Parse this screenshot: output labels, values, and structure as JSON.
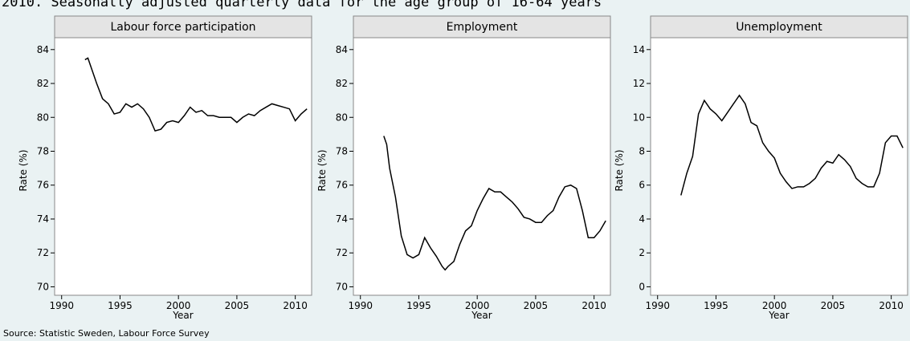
{
  "header": "2010. Seasonally adjusted quarterly data for the age group of 16-64 years",
  "source": "Source: Statistic Sweden, Labour Force Survey",
  "chart_data": [
    {
      "type": "line",
      "title": "Labour force participation",
      "xlabel": "Year",
      "ylabel": "Rate (%)",
      "xlim": [
        1989.4,
        2011.4
      ],
      "xticks": [
        1990,
        1995,
        2000,
        2005,
        2010
      ],
      "ylim": [
        69.5,
        84.7
      ],
      "yticks": [
        70,
        72,
        74,
        76,
        78,
        80,
        82,
        84
      ],
      "x": [
        1992,
        1992.25,
        1993,
        1993.5,
        1994,
        1994.5,
        1995,
        1995.5,
        1996,
        1996.5,
        1997,
        1997.5,
        1998,
        1998.5,
        1999,
        1999.5,
        2000,
        2000.5,
        2001,
        2001.5,
        2002,
        2002.5,
        2003,
        2003.5,
        2004,
        2004.5,
        2005,
        2005.5,
        2006,
        2006.5,
        2007,
        2007.5,
        2008,
        2008.5,
        2009,
        2009.5,
        2010,
        2010.5,
        2011
      ],
      "series": [
        {
          "color": "#000000",
          "values": [
            83.4,
            83.5,
            82.0,
            81.1,
            80.8,
            80.2,
            80.3,
            80.8,
            80.6,
            80.8,
            80.5,
            80.0,
            79.2,
            79.3,
            79.7,
            79.8,
            79.7,
            80.1,
            80.6,
            80.3,
            80.4,
            80.1,
            80.1,
            80.0,
            80.0,
            80.0,
            79.7,
            80.0,
            80.2,
            80.1,
            80.4,
            80.6,
            80.8,
            80.7,
            80.6,
            80.5,
            79.8,
            80.2,
            80.5
          ]
        }
      ]
    },
    {
      "type": "line",
      "title": "Employment",
      "xlabel": "Year",
      "ylabel": "Rate (%)",
      "xlim": [
        1989.4,
        2011.4
      ],
      "xticks": [
        1990,
        1995,
        2000,
        2005,
        2010
      ],
      "ylim": [
        69.5,
        84.7
      ],
      "yticks": [
        70,
        72,
        74,
        76,
        78,
        80,
        82,
        84
      ],
      "x": [
        1992,
        1992.25,
        1992.5,
        1993,
        1993.5,
        1994,
        1994.5,
        1995,
        1995.5,
        1996,
        1996.5,
        1997,
        1997.25,
        1997.5,
        1998,
        1998.5,
        1999,
        1999.5,
        2000,
        2000.5,
        2001,
        2001.5,
        2002,
        2002.5,
        2003,
        2003.5,
        2004,
        2004.5,
        2005,
        2005.5,
        2006,
        2006.5,
        2007,
        2007.5,
        2008,
        2008.5,
        2009,
        2009.5,
        2010,
        2010.5,
        2011
      ],
      "series": [
        {
          "color": "#000000",
          "values": [
            78.9,
            78.4,
            77.0,
            75.3,
            73.0,
            71.9,
            71.7,
            71.9,
            72.9,
            72.3,
            71.8,
            71.2,
            71.0,
            71.2,
            71.5,
            72.5,
            73.3,
            73.6,
            74.5,
            75.2,
            75.8,
            75.6,
            75.6,
            75.3,
            75.0,
            74.6,
            74.1,
            74.0,
            73.8,
            73.8,
            74.2,
            74.5,
            75.3,
            75.9,
            76.0,
            75.8,
            74.5,
            72.9,
            72.9,
            73.3,
            73.9
          ]
        }
      ]
    },
    {
      "type": "line",
      "title": "Unemployment",
      "xlabel": "Year",
      "ylabel": "Rate (%)",
      "xlim": [
        1989.4,
        2011.4
      ],
      "xticks": [
        1990,
        1995,
        2000,
        2005,
        2010
      ],
      "ylim": [
        -0.5,
        14.7
      ],
      "yticks": [
        0,
        2,
        4,
        6,
        8,
        10,
        12,
        14
      ],
      "x": [
        1992,
        1992.5,
        1993,
        1993.5,
        1994,
        1994.5,
        1995,
        1995.5,
        1996,
        1996.5,
        1997,
        1997.5,
        1998,
        1998.5,
        1999,
        1999.5,
        2000,
        2000.5,
        2001,
        2001.5,
        2002,
        2002.5,
        2003,
        2003.5,
        2004,
        2004.5,
        2005,
        2005.5,
        2006,
        2006.5,
        2007,
        2007.5,
        2008,
        2008.5,
        2009,
        2009.5,
        2010,
        2010.5,
        2011
      ],
      "series": [
        {
          "color": "#000000",
          "values": [
            5.4,
            6.7,
            7.7,
            10.2,
            11.0,
            10.5,
            10.2,
            9.8,
            10.3,
            10.8,
            11.3,
            10.8,
            9.7,
            9.5,
            8.5,
            8.0,
            7.6,
            6.7,
            6.2,
            5.8,
            5.9,
            5.9,
            6.1,
            6.4,
            7.0,
            7.4,
            7.3,
            7.8,
            7.5,
            7.1,
            6.4,
            6.1,
            5.9,
            5.9,
            6.7,
            8.5,
            8.9,
            8.9,
            8.2
          ]
        }
      ]
    }
  ]
}
